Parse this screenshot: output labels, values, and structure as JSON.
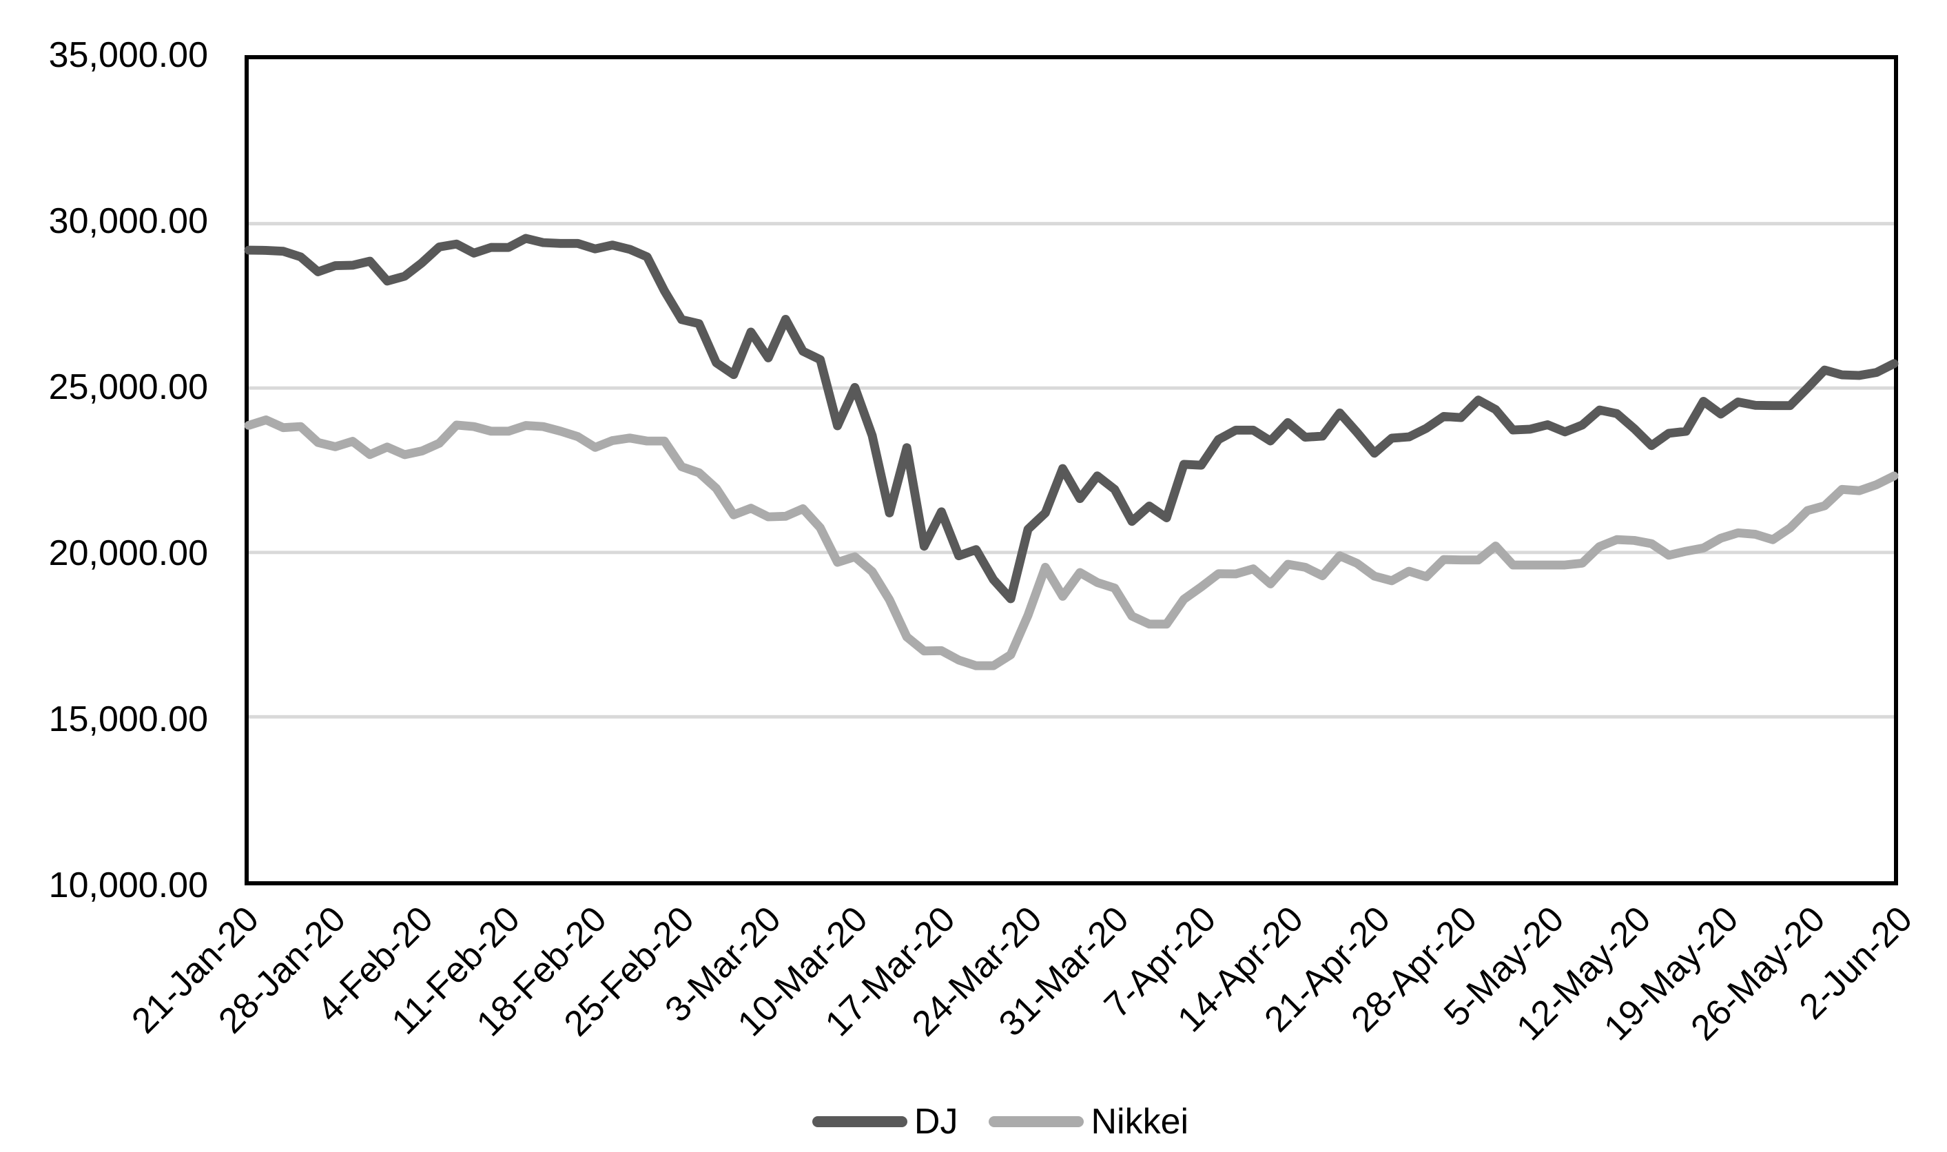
{
  "chart_data": {
    "type": "line",
    "title": "",
    "xlabel": "",
    "ylabel": "",
    "grid": true,
    "legend_position": "bottom",
    "x_axis": {
      "tick_labels": [
        "21-Jan-20",
        "28-Jan-20",
        "4-Feb-20",
        "11-Feb-20",
        "18-Feb-20",
        "25-Feb-20",
        "3-Mar-20",
        "10-Mar-20",
        "17-Mar-20",
        "24-Mar-20",
        "31-Mar-20",
        "7-Apr-20",
        "14-Apr-20",
        "21-Apr-20",
        "28-Apr-20",
        "5-May-20",
        "12-May-20",
        "19-May-20",
        "26-May-20",
        "2-Jun-20"
      ],
      "points_per_tick": 5
    },
    "y_axis": {
      "min": 10000,
      "max": 35000,
      "tick_interval": 5000,
      "tick_labels": [
        "35,000.00",
        "30,000.00",
        "25,000.00",
        "20,000.00",
        "15,000.00",
        "10,000.00"
      ],
      "tick_values": [
        35000,
        30000,
        25000,
        20000,
        15000,
        10000
      ],
      "gridline_values": [
        30000,
        25000,
        20000,
        15000
      ]
    },
    "series": [
      {
        "name": "DJ",
        "color": "#595959",
        "values": [
          29196,
          29186,
          29160,
          28990,
          28536,
          28723,
          28734,
          28859,
          28256,
          28400,
          28808,
          29291,
          29380,
          29103,
          29277,
          29276,
          29551,
          29423,
          29398,
          29398,
          29232,
          29348,
          29220,
          28992,
          27961,
          27081,
          26958,
          25767,
          25409,
          26703,
          25917,
          27091,
          26121,
          25865,
          23851,
          25018,
          23553,
          21201,
          23186,
          20189,
          21237,
          19899,
          20087,
          19174,
          18592,
          20705,
          21201,
          22552,
          21637,
          22327,
          21917,
          20944,
          21413,
          21053,
          22680,
          22654,
          23434,
          23719,
          23719,
          23391,
          23950,
          23504,
          23538,
          24242,
          23650,
          23019,
          23476,
          23515,
          23775,
          24134,
          24102,
          24634,
          24346,
          23724,
          23750,
          23883,
          23665,
          23876,
          24331,
          24222,
          23765,
          23248,
          23625,
          23685,
          24597,
          24207,
          24576,
          24474,
          24465,
          24465,
          24995,
          25548,
          25401,
          25383,
          25475,
          25743
        ]
      },
      {
        "name": "Nikkei",
        "color": "#ABABAB",
        "values": [
          23865,
          24031,
          23795,
          23827,
          23344,
          23216,
          23379,
          22978,
          23205,
          22972,
          23085,
          23320,
          23874,
          23828,
          23686,
          23686,
          23861,
          23828,
          23688,
          23523,
          23194,
          23401,
          23479,
          23387,
          23387,
          22605,
          22426,
          21948,
          21143,
          21344,
          21083,
          21100,
          21329,
          20750,
          19699,
          19867,
          19416,
          18560,
          17431,
          17002,
          17012,
          16727,
          16553,
          16553,
          16888,
          18092,
          19547,
          18665,
          19389,
          19085,
          18917,
          18065,
          17819,
          17820,
          18576,
          18950,
          19353,
          19346,
          19499,
          19043,
          19639,
          19550,
          19290,
          19897,
          19669,
          19281,
          19138,
          19429,
          19262,
          19783,
          19771,
          19771,
          20194,
          19619,
          19619,
          19619,
          19619,
          19675,
          20179,
          20391,
          20366,
          20267,
          19915,
          20037,
          20134,
          20433,
          20595,
          20552,
          20388,
          20742,
          21271,
          21419,
          21916,
          21878,
          22062,
          22326
        ]
      }
    ]
  },
  "legend": {
    "dj_label": "DJ",
    "nikkei_label": "Nikkei"
  },
  "colors": {
    "dj_line": "#595959",
    "nikkei_line": "#ABABAB",
    "gridline": "#D9D9D9",
    "axis_border": "#000000",
    "background": "#FFFFFF",
    "text": "#000000"
  }
}
